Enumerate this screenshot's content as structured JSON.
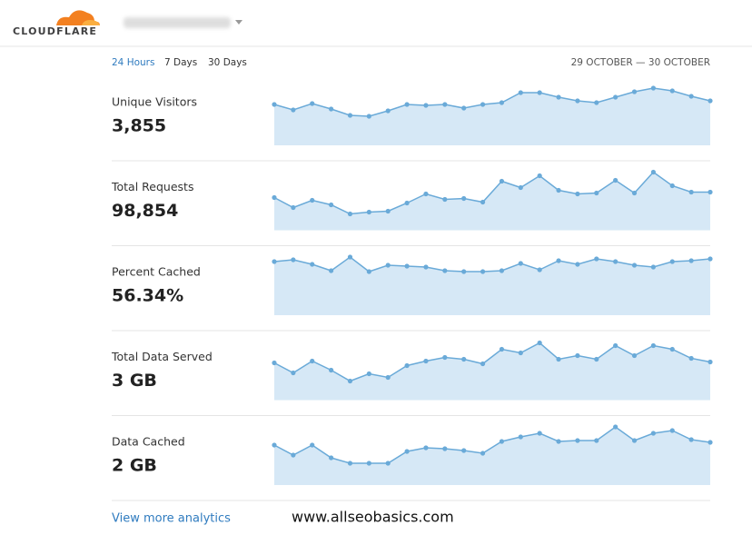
{
  "header": {
    "logo": "CLOUDFLARE"
  },
  "tabs": [
    "24 Hours",
    "7 Days",
    "30 Days"
  ],
  "active_tab": 0,
  "date_range": "29 OCTOBER — 30 OCTOBER",
  "metrics": [
    {
      "label": "Unique Visitors",
      "value": "3,855",
      "chart": {
        "type": "line",
        "color": "#6aaad8",
        "fill": "#d6e8f6",
        "ylim": [
          0,
          70
        ],
        "values": [
          45,
          39,
          46,
          40,
          33,
          32,
          38,
          45,
          44,
          45,
          41,
          45,
          47,
          58,
          58,
          53,
          49,
          47,
          53,
          59,
          63,
          60,
          54,
          49
        ]
      }
    },
    {
      "label": "Total Requests",
      "value": "98,854",
      "chart": {
        "type": "line",
        "color": "#6aaad8",
        "fill": "#d6e8f6",
        "ylim": [
          0,
          70
        ],
        "values": [
          36,
          25,
          33,
          28,
          18,
          20,
          21,
          30,
          40,
          34,
          35,
          31,
          54,
          47,
          60,
          44,
          40,
          41,
          55,
          41,
          64,
          49,
          42,
          42
        ]
      }
    },
    {
      "label": "Percent Cached",
      "value": "56.34%",
      "chart": {
        "type": "line",
        "color": "#6aaad8",
        "fill": "#d6e8f6",
        "ylim": [
          0,
          70
        ],
        "values": [
          59,
          61,
          56,
          49,
          64,
          48,
          55,
          54,
          53,
          49,
          48,
          48,
          49,
          57,
          50,
          60,
          56,
          62,
          59,
          55,
          53,
          59,
          60,
          62
        ]
      }
    },
    {
      "label": "Total Data Served",
      "value": "3 GB",
      "chart": {
        "type": "line",
        "color": "#6aaad8",
        "fill": "#d6e8f6",
        "ylim": [
          0,
          70
        ],
        "values": [
          41,
          30,
          43,
          33,
          21,
          29,
          25,
          38,
          43,
          47,
          45,
          40,
          56,
          52,
          63,
          45,
          49,
          45,
          60,
          49,
          60,
          56,
          46,
          42
        ]
      }
    },
    {
      "label": "Data Cached",
      "value": "2 GB",
      "chart": {
        "type": "line",
        "color": "#6aaad8",
        "fill": "#d6e8f6",
        "ylim": [
          0,
          70
        ],
        "values": [
          44,
          33,
          44,
          30,
          24,
          24,
          24,
          37,
          41,
          40,
          38,
          35,
          48,
          53,
          57,
          48,
          49,
          49,
          64,
          49,
          57,
          60,
          50,
          47
        ]
      }
    }
  ],
  "footer": {
    "link": "View more analytics",
    "watermark": "www.allseobasics.com"
  }
}
